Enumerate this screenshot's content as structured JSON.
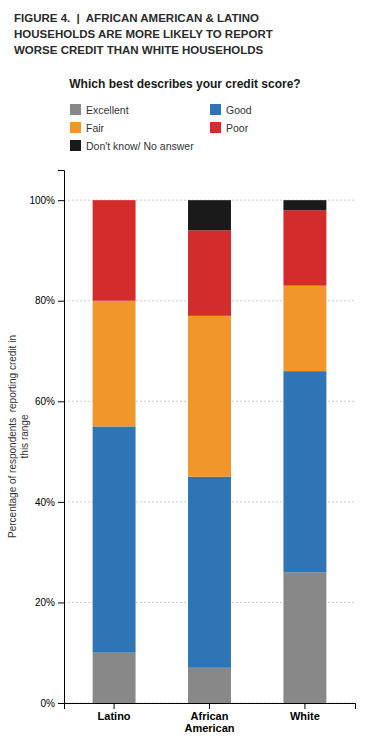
{
  "chart_data": {
    "type": "bar",
    "stacked": true,
    "title": "FIGURE 4.  |  AFRICAN AMERICAN & LATINO\nHOUSEHOLDS ARE MORE LIKELY TO REPORT\nWORSE CREDIT THAN WHITE HOUSEHOLDS",
    "subtitle": "Which best describes your credit score?",
    "y_label": "Percentage of respondents  reporting credit in\nthis range",
    "categories": [
      "Latino",
      "African\nAmerican",
      "White"
    ],
    "series": [
      {
        "name": "Excellent",
        "color": "#888888",
        "values": [
          10,
          7,
          26
        ]
      },
      {
        "name": "Good",
        "color": "#2e75b6",
        "values": [
          45,
          38,
          40
        ]
      },
      {
        "name": "Fair",
        "color": "#f0962a",
        "values": [
          25,
          32,
          17
        ]
      },
      {
        "name": "Poor",
        "color": "#d42b2b",
        "values": [
          20,
          17,
          15
        ]
      },
      {
        "name": "Don't know/ No answer",
        "color": "#1a1a1a",
        "values": [
          0,
          6,
          2
        ]
      }
    ],
    "ylim": [
      0,
      106
    ],
    "yticks": [
      {
        "value": 0,
        "label": "0%"
      },
      {
        "value": 20,
        "label": "20%"
      },
      {
        "value": 40,
        "label": "40%"
      },
      {
        "value": 60,
        "label": "60%"
      },
      {
        "value": 80,
        "label": "80%"
      },
      {
        "value": 100,
        "label": "100%"
      }
    ],
    "grid": true,
    "legend": "top"
  }
}
